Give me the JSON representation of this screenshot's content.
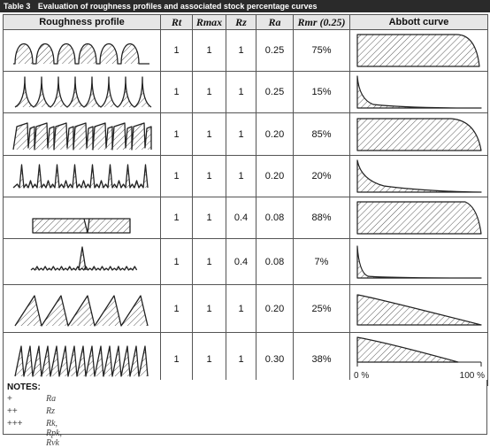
{
  "caption": {
    "label": "Table 3",
    "title": "Evaluation of roughness profiles and associated stock percentage curves"
  },
  "headers": [
    "Roughness profile",
    "Rt",
    "Rmax",
    "Rz",
    "Ra",
    "Rmr (0.25)",
    "Abbott curve"
  ],
  "rows": [
    {
      "profile": "round-peaks",
      "rt": "1",
      "rmax": "1",
      "rz": "1",
      "ra": "0.25",
      "rmr": "75%",
      "abbott": "full"
    },
    {
      "profile": "sharp-peaks",
      "rt": "1",
      "rmax": "1",
      "rz": "1",
      "ra": "0.25",
      "rmr": "15%",
      "abbott": "low"
    },
    {
      "profile": "notched-plateaus",
      "rt": "1",
      "rmax": "1",
      "rz": "1",
      "ra": "0.20",
      "rmr": "85%",
      "abbott": "full-tall"
    },
    {
      "profile": "small-spikes",
      "rt": "1",
      "rmax": "1",
      "rz": "1",
      "ra": "0.20",
      "rmr": "20%",
      "abbott": "low-wide"
    },
    {
      "profile": "flat-with-notch",
      "rt": "1",
      "rmax": "1",
      "rz": "0.4",
      "ra": "0.08",
      "rmr": "88%",
      "abbott": "full-flat"
    },
    {
      "profile": "single-spike",
      "rt": "1",
      "rmax": "1",
      "rz": "0.4",
      "ra": "0.08",
      "rmr": "7%",
      "abbott": "spike"
    },
    {
      "profile": "triangles",
      "rt": "1",
      "rmax": "1",
      "rz": "1",
      "ra": "0.20",
      "rmr": "25%",
      "abbott": "linear"
    },
    {
      "profile": "narrow-triangles",
      "rt": "1",
      "rmax": "1",
      "rz": "1",
      "ra": "0.30",
      "rmr": "38%",
      "abbott": "linear-axis"
    }
  ],
  "axis": {
    "min": "0 %",
    "max": "100 %"
  },
  "notes": {
    "title": "NOTES:",
    "items": [
      {
        "symbol": "+",
        "text": "Ra"
      },
      {
        "symbol": "++",
        "text": "Rz"
      },
      {
        "symbol": "+++",
        "text": "Rk, Rpk, Rvk"
      }
    ]
  }
}
